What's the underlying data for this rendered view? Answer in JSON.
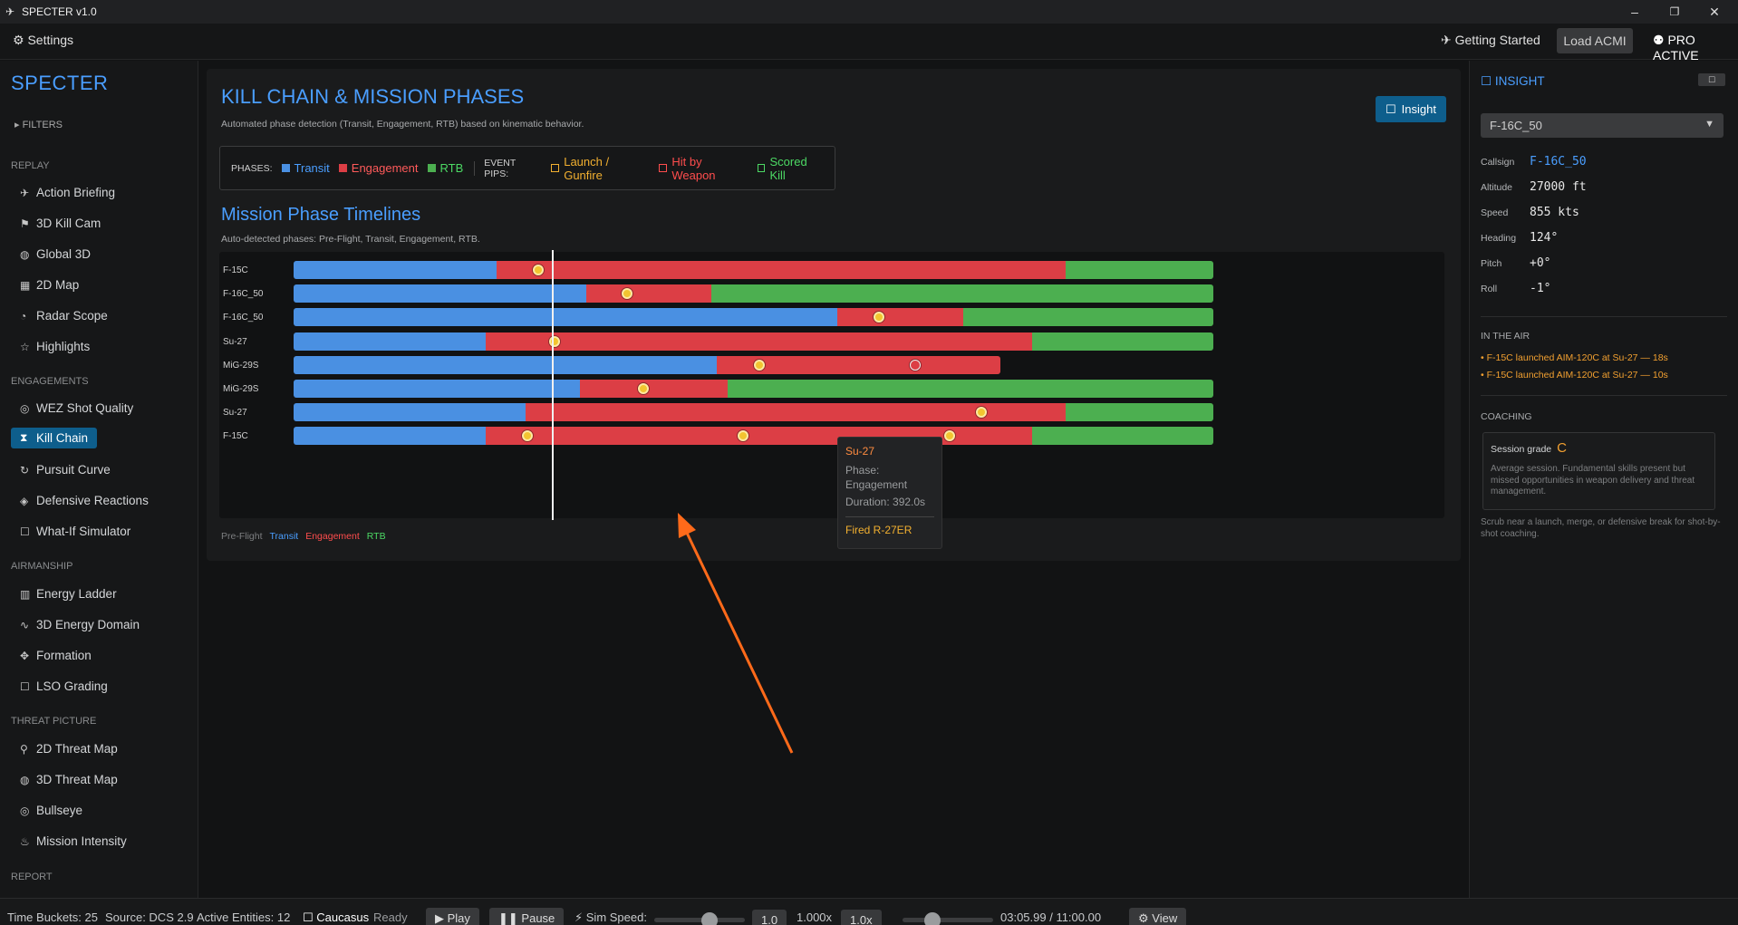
{
  "window": {
    "title": "SPECTER v1.0",
    "minimize": "–",
    "maximize": "❐",
    "close": "✕"
  },
  "menubar": {
    "settings_label": "Settings",
    "getting_started_label": "Getting Started",
    "load_acmi_label": "Load ACMI",
    "pro_label": "PRO ACTIVE"
  },
  "sidebar": {
    "brand": "SPECTER",
    "filters_label": "FILTERS",
    "sections": {
      "replay": "REPLAY",
      "engagements": "ENGAGEMENTS",
      "airmanship": "AIRMANSHIP",
      "threat_picture": "THREAT PICTURE",
      "report": "REPORT"
    },
    "items": {
      "action_briefing": "Action Briefing",
      "kill_cam": "3D Kill Cam",
      "global_3d": "Global 3D",
      "map_2d": "2D Map",
      "radar_scope": "Radar Scope",
      "highlights": "Highlights",
      "wez": "WEZ Shot Quality",
      "kill_chain": "Kill Chain",
      "pursuit": "Pursuit Curve",
      "defensive": "Defensive Reactions",
      "what_if": "What-If Simulator",
      "energy_ladder": "Energy Ladder",
      "energy_domain": "3D Energy Domain",
      "formation": "Formation",
      "lso": "LSO Grading",
      "threat_2d": "2D Threat Map",
      "threat_3d": "3D Threat Map",
      "bullseye": "Bullseye",
      "intensity": "Mission Intensity"
    }
  },
  "main": {
    "title": "KILL CHAIN & MISSION PHASES",
    "subtitle": "Automated phase detection (Transit, Engagement, RTB) based on kinematic behavior.",
    "insight_button": "Insight",
    "legend": {
      "phases_label": "PHASES:",
      "transit": "Transit",
      "engagement": "Engagement",
      "rtb": "RTB",
      "events_label": "EVENT PIPS:",
      "launch": "Launch / Gunfire",
      "hit": "Hit by Weapon",
      "kill": "Scored Kill"
    },
    "timeline_title": "Mission Phase Timelines",
    "timeline_subtitle": "Auto-detected phases: Pre-Flight, Transit, Engagement, RTB.",
    "bottom_legend": {
      "preflight": "Pre-Flight",
      "transit": "Transit",
      "engagement": "Engagement",
      "rtb": "RTB"
    },
    "tooltip": {
      "title": "Su-27",
      "phase_label": "Phase:",
      "phase_value": "Engagement",
      "duration": "Duration: 392.0s",
      "event": "Fired R-27ER"
    }
  },
  "colors": {
    "transit": "#4a90e2",
    "engagement": "#dc3e45",
    "rtb": "#4caf50",
    "accent": "#4a9eff",
    "launch": "#f2b030",
    "hit": "#ff4d4d",
    "kill": "#4cd964"
  },
  "timelines": [
    {
      "label": "F-15C",
      "transit_end": 0.221,
      "engagement_end": 0.839,
      "rtb_end": 1.0,
      "pips": [
        0.266
      ]
    },
    {
      "label": "F-16C_50",
      "transit_end": 0.318,
      "engagement_end": 0.454,
      "rtb_end": 1.0,
      "pips": [
        0.363
      ]
    },
    {
      "label": "F-16C_50",
      "transit_end": 0.591,
      "engagement_end": 0.728,
      "rtb_end": 1.0,
      "pips": [
        0.636
      ]
    },
    {
      "label": "Su-27",
      "transit_end": 0.209,
      "engagement_end": 0.803,
      "rtb_end": 1.0,
      "pips": [
        0.284
      ]
    },
    {
      "label": "MiG-29S",
      "transit_end": 0.46,
      "engagement_end": 0.768,
      "rtb_end": null,
      "pips": [
        0.506
      ],
      "hollow": [
        0.676
      ]
    },
    {
      "label": "MiG-29S",
      "transit_end": 0.311,
      "engagement_end": 0.472,
      "rtb_end": 1.0,
      "pips": [
        0.38
      ]
    },
    {
      "label": "Su-27",
      "transit_end": 0.252,
      "engagement_end": 0.839,
      "rtb_end": 1.0,
      "pips": [
        0.748
      ]
    },
    {
      "label": "F-15C",
      "transit_end": 0.209,
      "engagement_end": 0.803,
      "rtb_end": 1.0,
      "pips": [
        0.254,
        0.489,
        0.713
      ]
    }
  ],
  "cursor_position": 0.281,
  "insight_panel": {
    "title": "INSIGHT",
    "toggle": "☐",
    "selected": "F-16C_50",
    "callsign_label": "Callsign",
    "callsign": "F-16C_50",
    "altitude_label": "Altitude",
    "altitude": "27000 ft",
    "speed_label": "Speed",
    "speed": "855 kts",
    "heading_label": "Heading",
    "heading": "124°",
    "pitch_label": "Pitch",
    "pitch": "+0°",
    "roll_label": "Roll",
    "roll": "-1°",
    "in_air_label": "IN THE AIR",
    "in_air": [
      "• F-15C launched AIM-120C at Su-27 — 18s",
      "• F-15C launched AIM-120C at Su-27 — 10s"
    ],
    "coaching_label": "COACHING",
    "session_grade_label": "Session grade",
    "session_grade": "C",
    "coaching_text": "Average session. Fundamental skills present but missed opportunities in weapon delivery and threat management.",
    "note": "Scrub near a launch, merge, or defensive break for shot-by-shot coaching."
  },
  "statusbar": {
    "time_buckets": "Time Buckets: 25",
    "source": "Source: DCS 2.9",
    "entities": "Active Entities: 12",
    "theater": "Caucasus",
    "ready": "Ready",
    "play": "Play",
    "pause": "Pause",
    "sim_speed_label": "Sim Speed:",
    "sim_speed_value": "1.0",
    "speed_mult": "1.000x",
    "speed_box": "1.0x",
    "time": "03:05.99 / 11:00.00",
    "view": "View"
  }
}
